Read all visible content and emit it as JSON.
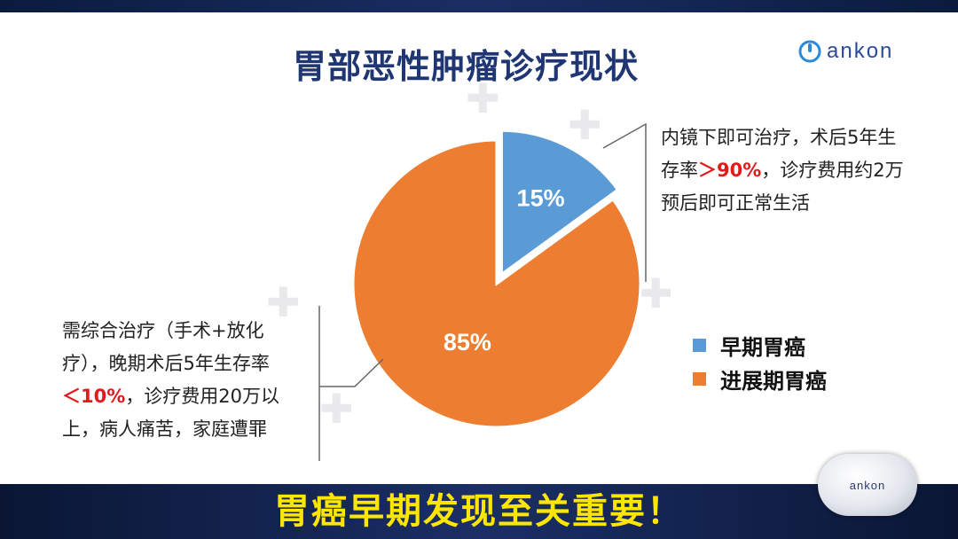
{
  "title": "胃部恶性肿瘤诊疗现状",
  "logo": {
    "text": "ankon"
  },
  "chart_data": {
    "type": "pie",
    "slices": [
      {
        "name": "早期胃癌",
        "value": 15,
        "label": "15%",
        "color": "#5b9bd5",
        "exploded": true
      },
      {
        "name": "进展期胃癌",
        "value": 85,
        "label": "85%",
        "color": "#ed7d31",
        "exploded": false
      }
    ],
    "legend_position": "right"
  },
  "annotation_right": {
    "line1": "内镜下即可治疗，术后5年生",
    "line2_a": "存率",
    "line2_hl": "＞90%",
    "line2_b": "，诊疗费用约2万",
    "line3": "预后即可正常生活"
  },
  "annotation_left": {
    "line1": "需综合治疗（手术+放化",
    "line2": "疗），晚期术后5年生存率",
    "line3_hl": "＜10%",
    "line3_b": "，诊疗费用20万以",
    "line4": "上，病人痛苦，家庭遭罪"
  },
  "legend": [
    {
      "label": "早期胃癌",
      "color": "#5b9bd5"
    },
    {
      "label": "进展期胃癌",
      "color": "#ed7d31"
    }
  ],
  "slogan": "胃癌早期发现至关重要！",
  "capsule_text": "ankon"
}
